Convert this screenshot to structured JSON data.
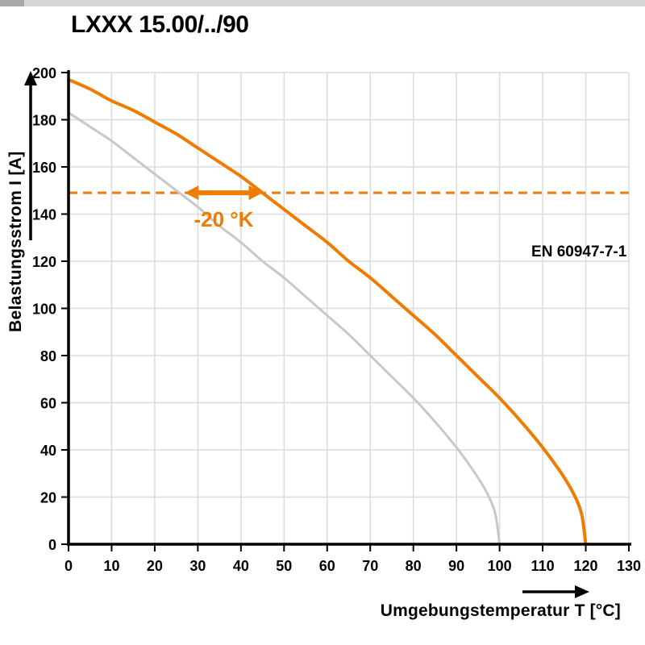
{
  "chart_data": {
    "type": "line",
    "title": "LXXX 15.00/../90",
    "xlabel": "Umgebungstemperatur T [°C]",
    "ylabel": "Belastungsstrom I [A]",
    "xlim": [
      0,
      130
    ],
    "ylim": [
      0,
      200
    ],
    "xticks": [
      0,
      10,
      20,
      30,
      40,
      50,
      60,
      70,
      80,
      90,
      100,
      110,
      120,
      130
    ],
    "yticks": [
      0,
      20,
      40,
      60,
      80,
      100,
      120,
      140,
      160,
      180,
      200
    ],
    "grid": true,
    "colors": {
      "accent": "#EE7C00",
      "reference": "#C8C8C8",
      "grid": "#DBDBDB",
      "axis": "#000000"
    },
    "series": [
      {
        "name": "derating-curve-90",
        "color": "#EE7C00",
        "width": 4,
        "points": [
          [
            0,
            197
          ],
          [
            5,
            193
          ],
          [
            10,
            188
          ],
          [
            15,
            184
          ],
          [
            20,
            179
          ],
          [
            25,
            174
          ],
          [
            30,
            168
          ],
          [
            35,
            162
          ],
          [
            40,
            156
          ],
          [
            45,
            149
          ],
          [
            50,
            142
          ],
          [
            55,
            135
          ],
          [
            60,
            128
          ],
          [
            65,
            120
          ],
          [
            70,
            113
          ],
          [
            75,
            105
          ],
          [
            80,
            97
          ],
          [
            85,
            89
          ],
          [
            90,
            80
          ],
          [
            95,
            71
          ],
          [
            100,
            62
          ],
          [
            105,
            52
          ],
          [
            110,
            41
          ],
          [
            114,
            31
          ],
          [
            117,
            22
          ],
          [
            119,
            13
          ],
          [
            120,
            0
          ]
        ]
      },
      {
        "name": "derating-curve-reference",
        "color": "#C8C8C8",
        "width": 3,
        "points": [
          [
            0,
            183
          ],
          [
            5,
            177
          ],
          [
            10,
            171
          ],
          [
            15,
            164
          ],
          [
            20,
            157
          ],
          [
            25,
            150
          ],
          [
            30,
            143
          ],
          [
            35,
            135
          ],
          [
            40,
            128
          ],
          [
            45,
            120
          ],
          [
            50,
            113
          ],
          [
            55,
            105
          ],
          [
            60,
            97
          ],
          [
            65,
            89
          ],
          [
            70,
            80
          ],
          [
            75,
            71
          ],
          [
            80,
            62
          ],
          [
            85,
            52
          ],
          [
            90,
            41
          ],
          [
            94,
            31
          ],
          [
            97,
            22
          ],
          [
            99,
            13
          ],
          [
            100,
            0
          ]
        ]
      }
    ],
    "annotations": {
      "dashed_line": {
        "y": 149,
        "color": "#EE7C00"
      },
      "delta_arrow": {
        "x1": 27,
        "x2": 45,
        "y": 149,
        "label": "-20 °K",
        "color": "#EE7C00"
      },
      "standard_label": {
        "text": "EN 60947-7-1",
        "x": 129.5,
        "y": 122
      }
    }
  }
}
